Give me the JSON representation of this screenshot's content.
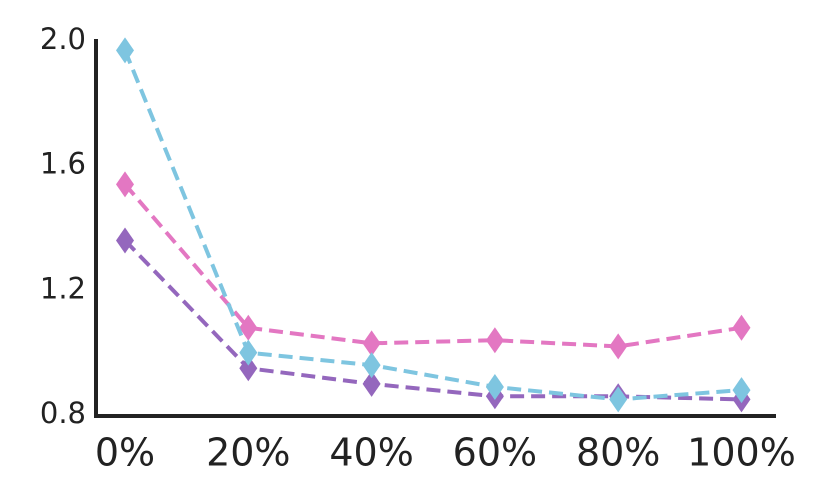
{
  "chart_data": {
    "type": "line",
    "categories": [
      "0%",
      "20%",
      "40%",
      "60%",
      "80%",
      "100%"
    ],
    "series": [
      {
        "color": "#9467bd",
        "values": [
          1.36,
          0.95,
          0.9,
          0.86,
          0.86,
          0.85
        ]
      },
      {
        "color": "#e377c2",
        "values": [
          1.54,
          1.08,
          1.03,
          1.04,
          1.02,
          1.08
        ]
      },
      {
        "color": "#7ec5e0",
        "values": [
          1.97,
          1.0,
          0.96,
          0.89,
          0.85,
          0.88
        ]
      }
    ],
    "ylim": [
      0.8,
      2.0
    ],
    "yticks": [
      0.8,
      1.2,
      1.6,
      {
        "value": 2.0,
        "label": "2.0"
      }
    ],
    "marker": "diamond",
    "line_style": "dashed"
  }
}
